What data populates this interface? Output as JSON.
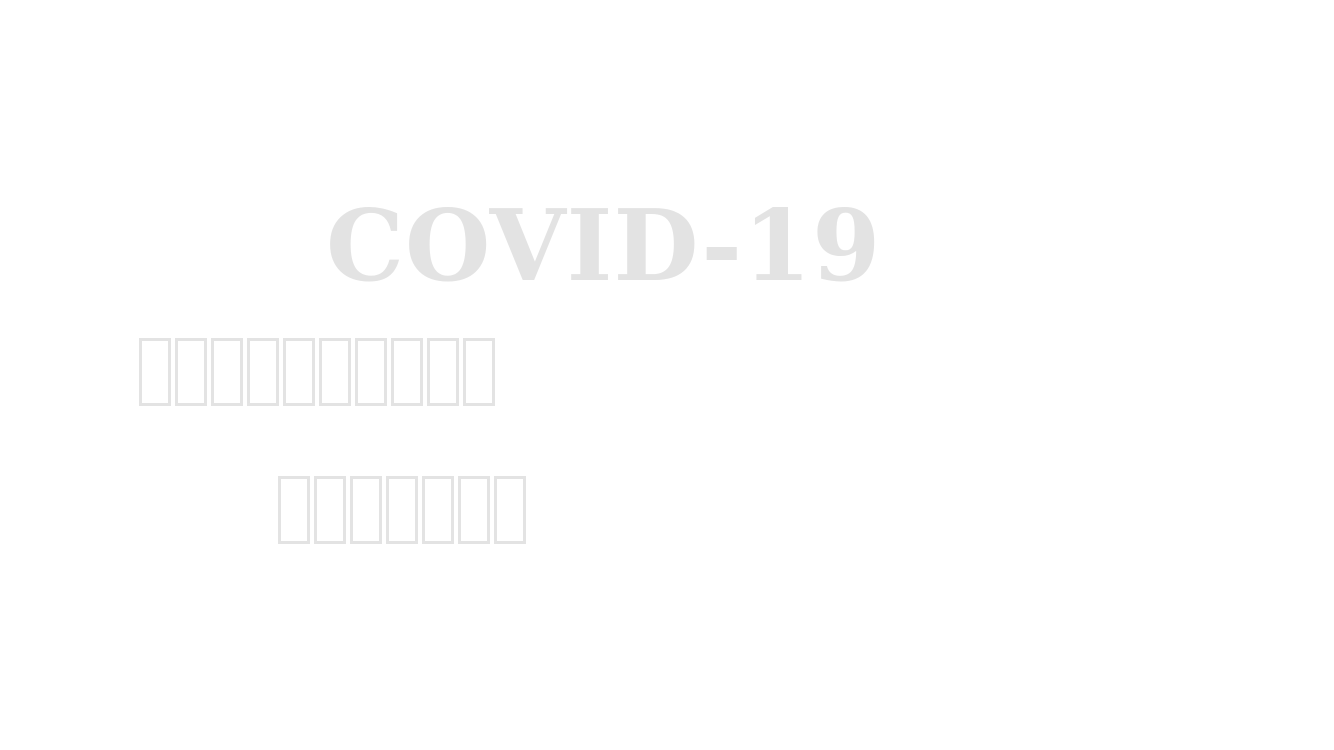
{
  "slide": {
    "title": "COVID-19",
    "text_color": "#e3e3e3",
    "background": "#ffffff",
    "subtitle_line_1_glyph_count": 10,
    "subtitle_line_2_glyph_count": 7
  }
}
